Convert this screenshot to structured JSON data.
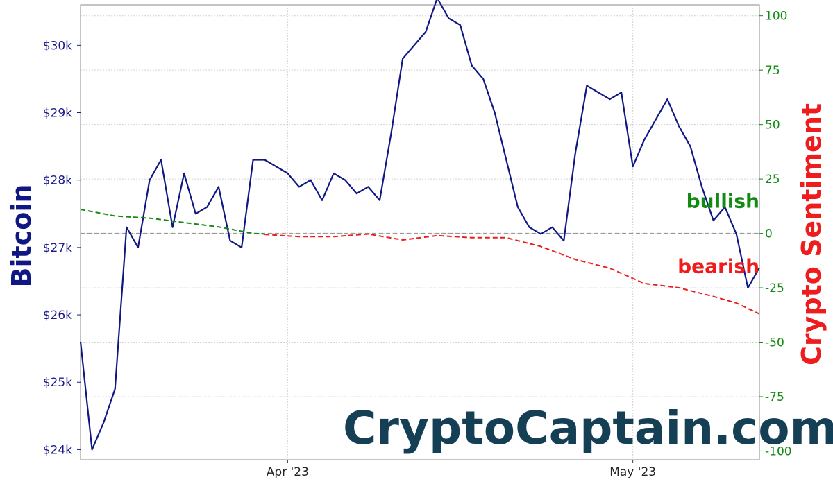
{
  "chart_data": {
    "type": "line",
    "ylabel": "Bitcoin",
    "ylabel_right": "Crypto Sentiment",
    "x_ticks": [
      {
        "label": "Apr '23",
        "date": "2023-04-01"
      },
      {
        "label": "May '23",
        "date": "2023-05-01"
      }
    ],
    "x_range": [
      "2023-03-14",
      "2023-05-12"
    ],
    "y_ticks": [
      "$24k",
      "$25k",
      "$26k",
      "$27k",
      "$28k",
      "$29k",
      "$30k"
    ],
    "y_tick_values": [
      24000,
      25000,
      26000,
      27000,
      28000,
      29000,
      30000
    ],
    "ylim": [
      23850,
      30600
    ],
    "y2_ticks": [
      "100",
      "75",
      "50",
      "25",
      "0",
      "-25",
      "-50",
      "-75",
      "-100"
    ],
    "y2_tick_values": [
      100,
      75,
      50,
      25,
      0,
      -25,
      -50,
      -75,
      -100
    ],
    "y2lim": [
      -104,
      105
    ],
    "grid": true,
    "zero_reference_line": 0,
    "series": [
      {
        "color": "#0f1784",
        "axis": "left",
        "x": [
          "2023-03-14",
          "2023-03-15",
          "2023-03-16",
          "2023-03-17",
          "2023-03-18",
          "2023-03-19",
          "2023-03-20",
          "2023-03-21",
          "2023-03-22",
          "2023-03-23",
          "2023-03-24",
          "2023-03-25",
          "2023-03-26",
          "2023-03-27",
          "2023-03-28",
          "2023-03-29",
          "2023-03-30",
          "2023-03-31",
          "2023-04-01",
          "2023-04-02",
          "2023-04-03",
          "2023-04-04",
          "2023-04-05",
          "2023-04-06",
          "2023-04-07",
          "2023-04-08",
          "2023-04-09",
          "2023-04-10",
          "2023-04-11",
          "2023-04-12",
          "2023-04-13",
          "2023-04-14",
          "2023-04-15",
          "2023-04-16",
          "2023-04-17",
          "2023-04-18",
          "2023-04-19",
          "2023-04-20",
          "2023-04-21",
          "2023-04-22",
          "2023-04-23",
          "2023-04-24",
          "2023-04-25",
          "2023-04-26",
          "2023-04-27",
          "2023-04-28",
          "2023-04-29",
          "2023-04-30",
          "2023-05-01",
          "2023-05-02",
          "2023-05-03",
          "2023-05-04",
          "2023-05-05",
          "2023-05-06",
          "2023-05-07",
          "2023-05-08",
          "2023-05-09",
          "2023-05-10",
          "2023-05-11",
          "2023-05-12"
        ],
        "values": [
          25600,
          24000,
          24400,
          24900,
          27300,
          27000,
          28000,
          28300,
          27300,
          28100,
          27500,
          27600,
          27900,
          27100,
          27000,
          28300,
          28300,
          28200,
          28100,
          27900,
          28000,
          27700,
          28100,
          28000,
          27800,
          27900,
          27700,
          28700,
          29800,
          30000,
          30200,
          30700,
          30400,
          30300,
          29700,
          29500,
          29000,
          28300,
          27600,
          27300,
          27200,
          27300,
          27100,
          28400,
          29400,
          29300,
          29200,
          29300,
          28200,
          28600,
          28900,
          29200,
          28800,
          28500,
          27900,
          27400,
          27600,
          27200,
          26400,
          26700
        ]
      },
      {
        "name": "bullish",
        "color": "#138a13",
        "axis": "right",
        "style": "dashed",
        "x": [
          "2023-03-14",
          "2023-03-17",
          "2023-03-20",
          "2023-03-23",
          "2023-03-26",
          "2023-03-29",
          "2023-03-30"
        ],
        "values": [
          11,
          8,
          7,
          5,
          3,
          0,
          -0.3
        ]
      },
      {
        "name": "bearish",
        "color": "#ee1c1c",
        "axis": "right",
        "style": "dashed",
        "x": [
          "2023-03-30",
          "2023-04-02",
          "2023-04-05",
          "2023-04-08",
          "2023-04-11",
          "2023-04-14",
          "2023-04-17",
          "2023-04-20",
          "2023-04-23",
          "2023-04-26",
          "2023-04-29",
          "2023-05-02",
          "2023-05-05",
          "2023-05-08",
          "2023-05-10",
          "2023-05-12"
        ],
        "values": [
          -0.5,
          -1.5,
          -1.5,
          -0.3,
          -3,
          -1,
          -2,
          -2,
          -6,
          -12,
          -16,
          -23,
          -25,
          -29,
          -32,
          -37
        ]
      }
    ]
  },
  "annotations": {
    "bullish": {
      "text": "bullish",
      "color": "#138a13",
      "x": "2023-05-10",
      "y": 15
    },
    "bearish": {
      "text": "bearish",
      "color": "#ee1c1c",
      "x": "2023-05-10",
      "y": -15
    }
  },
  "watermark": {
    "text": "CryptoCaptain.com"
  }
}
